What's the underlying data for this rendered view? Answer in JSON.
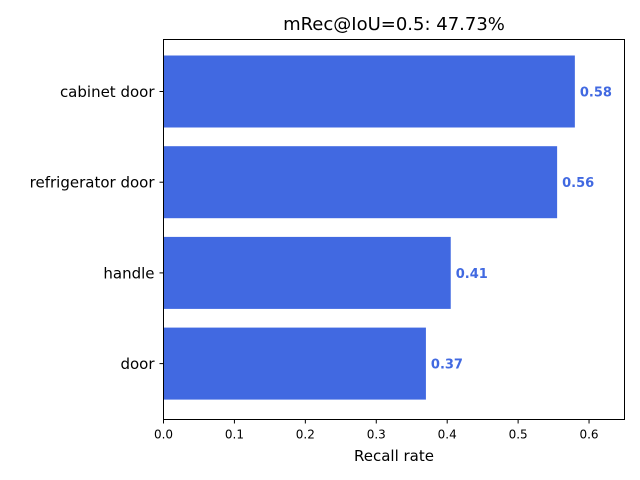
{
  "chart_data": {
    "type": "bar",
    "orientation": "horizontal",
    "title": "mRec@IoU=0.5: 47.73%",
    "xlabel": "Recall rate",
    "ylabel": "",
    "categories": [
      "cabinet door",
      "refrigerator door",
      "handle",
      "door"
    ],
    "values": [
      0.58,
      0.555,
      0.405,
      0.37
    ],
    "value_labels": [
      "0.58",
      "0.56",
      "0.41",
      "0.37"
    ],
    "xlim": [
      0,
      0.65
    ],
    "xticks": [
      "0.0",
      "0.1",
      "0.2",
      "0.3",
      "0.4",
      "0.5",
      "0.6"
    ],
    "grid": false,
    "bar_color": "#4169E1"
  }
}
